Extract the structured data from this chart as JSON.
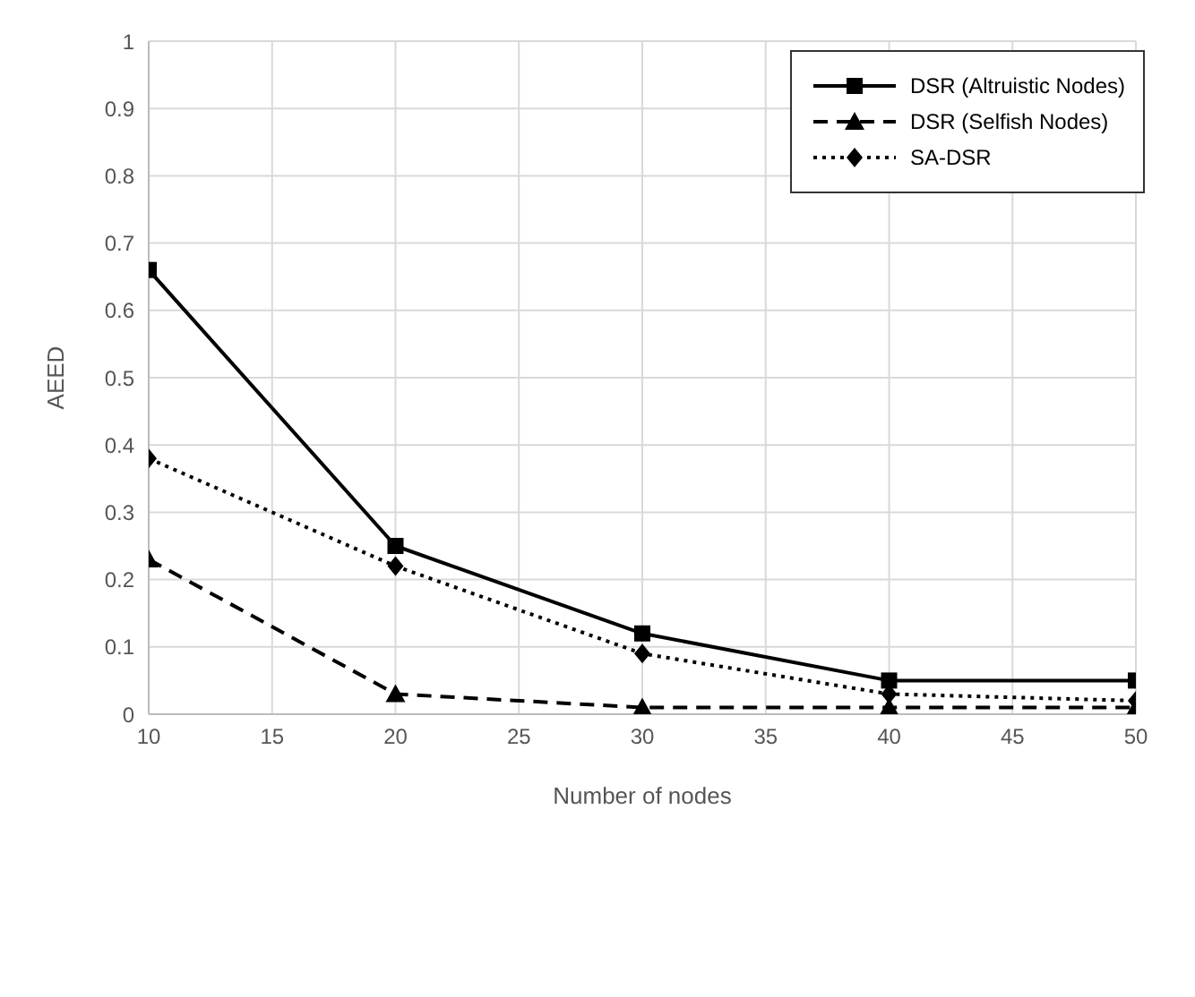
{
  "chart_data": {
    "type": "line",
    "xlabel": "Number of nodes",
    "ylabel": "AEED",
    "x": [
      10,
      20,
      30,
      40,
      50
    ],
    "xlim": [
      10,
      50
    ],
    "xticks": [
      10,
      15,
      20,
      25,
      30,
      35,
      40,
      45,
      50
    ],
    "ylim": [
      0,
      1
    ],
    "yticks": [
      0,
      0.1,
      0.2,
      0.3,
      0.4,
      0.5,
      0.6,
      0.7,
      0.8,
      0.9,
      1
    ],
    "grid": true,
    "legend": "top right",
    "series": [
      {
        "name": "DSR (Altruistic Nodes)",
        "color": "#000000",
        "values": [
          0.66,
          0.25,
          0.12,
          0.05,
          0.05
        ],
        "marker": "square",
        "line_style": "solid"
      },
      {
        "name": "DSR (Selfish Nodes)",
        "color": "#000000",
        "values": [
          0.23,
          0.03,
          0.01,
          0.01,
          0.01
        ],
        "marker": "triangle",
        "line_style": "dashed"
      },
      {
        "name": "SA-DSR",
        "color": "#000000",
        "values": [
          0.38,
          0.22,
          0.09,
          0.03,
          0.02
        ],
        "marker": "diamond",
        "line_style": "dotted"
      }
    ]
  }
}
